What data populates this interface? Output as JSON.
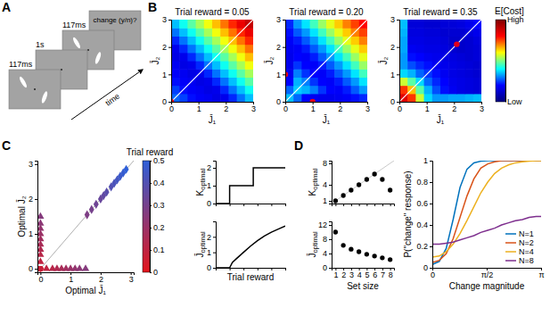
{
  "panel_labels": [
    "A",
    "B",
    "C",
    "D"
  ],
  "schematic": {
    "frames": [
      "117ms",
      "1s",
      "117ms"
    ],
    "prompt": "change (y/n)?",
    "time_label": "time"
  },
  "chart_data": [
    {
      "type": "heatmap",
      "title": "Trial reward = 0.05",
      "x_label": "J̄₁",
      "y_label": "J̄₂",
      "xlim": [
        0,
        3
      ],
      "ylim": [
        0,
        3
      ],
      "xticks": [
        0,
        1,
        2,
        3
      ],
      "yticks": [
        0,
        1,
        2,
        3
      ],
      "x": [
        0.15,
        0.45,
        0.75,
        1.05,
        1.35,
        1.65,
        1.95,
        2.25,
        2.55,
        2.85
      ],
      "y": [
        0.15,
        0.45,
        0.75,
        1.05,
        1.35,
        1.65,
        1.95,
        2.25,
        2.55,
        2.85
      ],
      "z": [
        [
          0.28,
          0.25,
          0.21,
          0.19,
          0.18,
          0.16,
          0.17,
          0.23,
          0.29,
          0.35
        ],
        [
          0.25,
          0.21,
          0.19,
          0.18,
          0.16,
          0.17,
          0.23,
          0.29,
          0.35,
          0.41
        ],
        [
          0.21,
          0.19,
          0.18,
          0.16,
          0.17,
          0.23,
          0.29,
          0.35,
          0.41,
          0.47
        ],
        [
          0.19,
          0.18,
          0.16,
          0.17,
          0.23,
          0.29,
          0.35,
          0.41,
          0.47,
          0.53
        ],
        [
          0.18,
          0.16,
          0.17,
          0.23,
          0.29,
          0.35,
          0.41,
          0.47,
          0.53,
          0.59
        ],
        [
          0.16,
          0.17,
          0.23,
          0.29,
          0.35,
          0.41,
          0.47,
          0.53,
          0.59,
          0.65
        ],
        [
          0.17,
          0.23,
          0.29,
          0.35,
          0.41,
          0.47,
          0.53,
          0.59,
          0.65,
          0.71
        ],
        [
          0.23,
          0.29,
          0.35,
          0.41,
          0.47,
          0.53,
          0.59,
          0.65,
          0.71,
          0.77
        ],
        [
          0.29,
          0.35,
          0.41,
          0.47,
          0.53,
          0.59,
          0.65,
          0.71,
          0.77,
          0.83
        ],
        [
          0.35,
          0.41,
          0.47,
          0.53,
          0.59,
          0.65,
          0.71,
          0.77,
          0.83,
          0.89
        ]
      ],
      "optima": {
        "x": [
          0
        ],
        "y": [
          0
        ],
        "color": "#e3001b"
      }
    },
    {
      "type": "heatmap",
      "title": "Trial reward = 0.20",
      "x_label": "J̄₁",
      "y_label": "J̄₂",
      "xlim": [
        0,
        3
      ],
      "ylim": [
        0,
        3
      ],
      "xticks": [
        0,
        1,
        2,
        3
      ],
      "yticks": [
        0,
        1,
        2,
        3
      ],
      "x": [
        0.15,
        0.45,
        0.75,
        1.05,
        1.35,
        1.65,
        1.95,
        2.25,
        2.55,
        2.85
      ],
      "y": [
        0.15,
        0.45,
        0.75,
        1.05,
        1.35,
        1.65,
        1.95,
        2.25,
        2.55,
        2.85
      ],
      "z": [
        [
          0.35,
          0.28,
          0.2,
          0.18,
          0.17,
          0.17,
          0.18,
          0.19,
          0.21,
          0.23
        ],
        [
          0.28,
          0.36,
          0.34,
          0.3,
          0.24,
          0.2,
          0.19,
          0.22,
          0.27,
          0.32
        ],
        [
          0.2,
          0.34,
          0.3,
          0.24,
          0.2,
          0.19,
          0.22,
          0.27,
          0.32,
          0.38
        ],
        [
          0.18,
          0.3,
          0.24,
          0.2,
          0.19,
          0.22,
          0.27,
          0.32,
          0.38,
          0.45
        ],
        [
          0.17,
          0.24,
          0.2,
          0.19,
          0.22,
          0.27,
          0.32,
          0.38,
          0.45,
          0.52
        ],
        [
          0.17,
          0.2,
          0.19,
          0.22,
          0.27,
          0.32,
          0.38,
          0.45,
          0.52,
          0.58
        ],
        [
          0.18,
          0.19,
          0.22,
          0.27,
          0.32,
          0.38,
          0.45,
          0.52,
          0.58,
          0.64
        ],
        [
          0.19,
          0.22,
          0.27,
          0.32,
          0.38,
          0.45,
          0.52,
          0.58,
          0.64,
          0.7
        ],
        [
          0.21,
          0.27,
          0.32,
          0.38,
          0.45,
          0.52,
          0.58,
          0.64,
          0.7,
          0.75
        ],
        [
          0.23,
          0.32,
          0.38,
          0.45,
          0.52,
          0.58,
          0.64,
          0.7,
          0.75,
          0.8
        ]
      ],
      "optima": {
        "x": [
          0,
          1
        ],
        "y": [
          1,
          0
        ],
        "color": "#e3001b"
      }
    },
    {
      "type": "heatmap",
      "title": "Trial reward = 0.35",
      "x_label": "J̄₁",
      "y_label": "J̄₂",
      "xlim": [
        0,
        3
      ],
      "ylim": [
        0,
        3
      ],
      "xticks": [
        0,
        1,
        2,
        3
      ],
      "yticks": [
        0,
        1,
        2,
        3
      ],
      "x": [
        0.15,
        0.45,
        0.75,
        1.05,
        1.35,
        1.65,
        1.95,
        2.25,
        2.55,
        2.85
      ],
      "y": [
        0.15,
        0.45,
        0.75,
        1.05,
        1.35,
        1.65,
        1.95,
        2.25,
        2.55,
        2.85
      ],
      "z": [
        [
          0.85,
          0.76,
          0.56,
          0.37,
          0.32,
          0.32,
          0.33,
          0.33,
          0.34,
          0.35
        ],
        [
          0.76,
          0.65,
          0.47,
          0.34,
          0.26,
          0.21,
          0.18,
          0.16,
          0.15,
          0.14
        ],
        [
          0.56,
          0.47,
          0.37,
          0.28,
          0.23,
          0.2,
          0.17,
          0.16,
          0.15,
          0.14
        ],
        [
          0.37,
          0.34,
          0.28,
          0.24,
          0.21,
          0.18,
          0.16,
          0.15,
          0.14,
          0.13
        ],
        [
          0.32,
          0.26,
          0.23,
          0.21,
          0.18,
          0.17,
          0.16,
          0.15,
          0.14,
          0.13
        ],
        [
          0.32,
          0.21,
          0.2,
          0.18,
          0.17,
          0.16,
          0.15,
          0.14,
          0.13,
          0.14
        ],
        [
          0.33,
          0.18,
          0.17,
          0.16,
          0.16,
          0.15,
          0.13,
          0.12,
          0.13,
          0.14
        ],
        [
          0.33,
          0.16,
          0.16,
          0.15,
          0.15,
          0.14,
          0.12,
          0.12,
          0.13,
          0.15
        ],
        [
          0.34,
          0.15,
          0.15,
          0.14,
          0.14,
          0.13,
          0.13,
          0.13,
          0.15,
          0.17
        ],
        [
          0.35,
          0.14,
          0.14,
          0.13,
          0.13,
          0.14,
          0.14,
          0.15,
          0.17,
          0.2
        ]
      ],
      "optima": {
        "x": [
          2.1
        ],
        "y": [
          2.1
        ],
        "color": "#e3001b"
      },
      "colorbar": {
        "label": "E[Cost]",
        "range": [
          0,
          1
        ],
        "ticks": [
          {
            "value": 0,
            "label": "Low"
          },
          {
            "value": 1,
            "label": "High"
          }
        ]
      }
    },
    {
      "type": "scatter",
      "x_label": "Optimal J̄₁",
      "y_label": "Optimal J̄₂",
      "xlim": [
        -0.1,
        3.1
      ],
      "ylim": [
        -0.1,
        3.1
      ],
      "xticks": [
        0,
        1,
        2,
        3
      ],
      "yticks": [
        0,
        1,
        2,
        3
      ],
      "series": [
        {
          "marker": "circle",
          "x": [
            0,
            0,
            0,
            0,
            0
          ],
          "y": [
            0,
            0,
            0,
            0,
            0
          ],
          "reward": [
            0,
            0.02,
            0.04,
            0.06,
            0.08
          ]
        },
        {
          "marker": "triangle",
          "x": [
            0,
            0,
            0,
            0,
            0,
            0,
            0,
            0,
            0,
            0.2,
            0.4,
            0.55,
            0.7,
            0.85,
            1.0,
            1.15,
            1.3,
            1.5
          ],
          "y": [
            0.2,
            0.4,
            0.55,
            0.7,
            0.85,
            1.0,
            1.15,
            1.3,
            1.5,
            0,
            0,
            0,
            0,
            0,
            0,
            0,
            0,
            0
          ],
          "reward": [
            0.1,
            0.12,
            0.14,
            0.16,
            0.18,
            0.2,
            0.22,
            0.24,
            0.26,
            0.1,
            0.12,
            0.14,
            0.16,
            0.18,
            0.2,
            0.22,
            0.24,
            0.26
          ]
        },
        {
          "marker": "diamond",
          "x": [
            1.55,
            1.7,
            1.85,
            2.0,
            2.1,
            2.2,
            2.35,
            2.45,
            2.55,
            2.65,
            2.75,
            2.85
          ],
          "y": [
            1.55,
            1.7,
            1.85,
            2.0,
            2.1,
            2.2,
            2.35,
            2.45,
            2.55,
            2.65,
            2.75,
            2.85
          ],
          "reward": [
            0.28,
            0.3,
            0.32,
            0.34,
            0.36,
            0.38,
            0.4,
            0.42,
            0.44,
            0.46,
            0.48,
            0.5
          ]
        }
      ],
      "colorbar": {
        "label": "Trial reward",
        "range": [
          0,
          0.5
        ],
        "ticks": [
          0,
          0.1,
          0.2,
          0.3,
          0.4,
          0.5
        ]
      }
    },
    {
      "type": "line",
      "y_label": "Koptimal",
      "x": [
        0,
        0.1,
        0.27,
        0.5
      ],
      "values": [
        0,
        1,
        2,
        2
      ],
      "line_style": "step",
      "color": "#000000",
      "xlim": [
        0,
        0.5
      ],
      "ylim": [
        0,
        2.4
      ],
      "xticks": [
        0,
        0.1,
        0.2,
        0.3,
        0.4,
        0.5
      ],
      "yticks": [
        0,
        1,
        2
      ],
      "tick_labels": "y"
    },
    {
      "type": "line",
      "x_label": "Trial reward",
      "y_label": "J̄optimal",
      "x": [
        0,
        0.1,
        0.12,
        0.15,
        0.2,
        0.25,
        0.3,
        0.35,
        0.4,
        0.45,
        0.5
      ],
      "values": [
        0,
        0,
        0.35,
        0.6,
        1.0,
        1.4,
        1.75,
        2.05,
        2.3,
        2.5,
        2.7
      ],
      "color": "#000000",
      "xlim": [
        0,
        0.5
      ],
      "ylim": [
        0,
        3
      ],
      "xticks": [
        0,
        0.1,
        0.2,
        0.3,
        0.4,
        0.5
      ],
      "yticks": [
        0,
        1,
        2
      ],
      "tick_labels": "y"
    },
    {
      "type": "scatter",
      "y_label": "Koptimal",
      "x": [
        1,
        2,
        3,
        4,
        5,
        6,
        7,
        8
      ],
      "values": [
        1,
        2,
        3,
        4,
        5,
        6,
        5,
        3
      ],
      "marker": "circle",
      "color": "#000000",
      "xlim": [
        0.5,
        8.5
      ],
      "ylim": [
        0.5,
        8.5
      ],
      "xticks": [
        1,
        2,
        3,
        4,
        5,
        6,
        7,
        8
      ],
      "yticks": [
        1,
        4,
        8
      ],
      "tick_labels": "y"
    },
    {
      "type": "scatter",
      "x_label": "Set size",
      "y_label": "J̄optimal",
      "x": [
        1,
        2,
        3,
        4,
        5,
        6,
        7,
        8
      ],
      "values": [
        10,
        6.3,
        5.2,
        4.5,
        3.8,
        3.3,
        2.8,
        2.3
      ],
      "marker": "circle",
      "color": "#000000",
      "xlim": [
        0.5,
        8.5
      ],
      "ylim": [
        0,
        13
      ],
      "xticks": [
        1,
        2,
        3,
        4,
        5,
        6,
        7,
        8
      ],
      "yticks": [
        0,
        4,
        8,
        12
      ]
    },
    {
      "type": "line",
      "x_label": "Change magnitude",
      "y_label": "P(\"change\" response)",
      "x": [
        0,
        0.2,
        0.4,
        0.6,
        0.8,
        1.0,
        1.2,
        1.4,
        1.6,
        1.8,
        2.0,
        2.2,
        2.4,
        2.6,
        2.8,
        3.0,
        3.14159
      ],
      "series": [
        {
          "name": "N=1",
          "color": "#0072bd",
          "values": [
            0.03,
            0.06,
            0.18,
            0.45,
            0.75,
            0.92,
            0.98,
            0.995,
            1,
            1,
            1,
            1,
            1,
            1,
            1,
            1,
            1
          ]
        },
        {
          "name": "N=2",
          "color": "#d95319",
          "values": [
            0.05,
            0.07,
            0.13,
            0.27,
            0.47,
            0.67,
            0.83,
            0.93,
            0.97,
            0.99,
            1,
            1,
            1,
            1,
            1,
            1,
            1
          ]
        },
        {
          "name": "N=4",
          "color": "#edb120",
          "values": [
            0.1,
            0.11,
            0.15,
            0.22,
            0.32,
            0.44,
            0.57,
            0.7,
            0.8,
            0.88,
            0.93,
            0.96,
            0.98,
            0.99,
            0.995,
            1,
            1
          ]
        },
        {
          "name": "N=8",
          "color": "#7e2f8e",
          "values": [
            0.22,
            0.22,
            0.23,
            0.24,
            0.26,
            0.28,
            0.3,
            0.33,
            0.35,
            0.37,
            0.4,
            0.42,
            0.44,
            0.45,
            0.47,
            0.48,
            0.48
          ]
        }
      ],
      "legend": "lower right",
      "xlim": [
        0,
        3.14159
      ],
      "ylim": [
        0,
        1
      ],
      "xticks": [
        0,
        {
          "value": 1.5708,
          "label": "π/2"
        },
        {
          "value": 3.14159,
          "label": "π"
        }
      ],
      "yticks": [
        0,
        0.2,
        0.4,
        0.6,
        0.8,
        1
      ]
    }
  ]
}
